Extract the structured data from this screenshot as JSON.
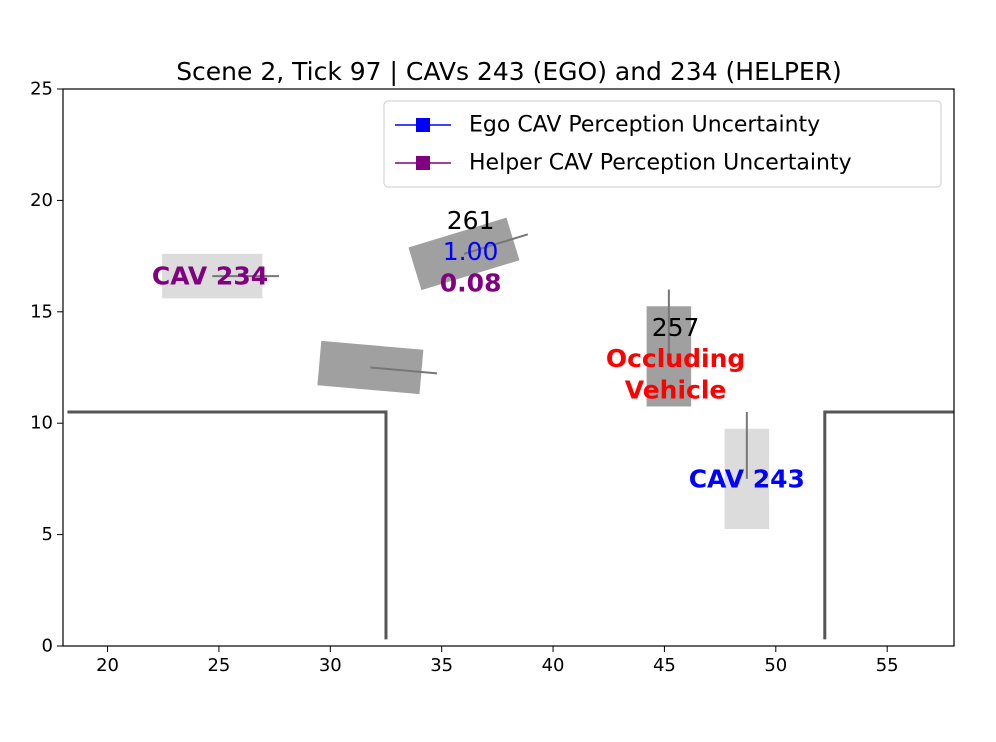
{
  "chart_data": {
    "type": "scatter",
    "title": "Scene 2, Tick 97 | CAVs 243 (EGO) and 234 (HELPER)",
    "xlabel": "",
    "ylabel": "",
    "xlim": [
      18,
      58
    ],
    "ylim": [
      0,
      25
    ],
    "x_ticks": [
      20,
      25,
      30,
      35,
      40,
      45,
      50,
      55
    ],
    "y_ticks": [
      0,
      5,
      10,
      15,
      20,
      25
    ],
    "grid": false,
    "legend": {
      "placement": "upper-right",
      "entries": [
        {
          "label": "Ego CAV Perception Uncertainty",
          "color": "#0000ff",
          "marker": "square"
        },
        {
          "label": "Helper CAV Perception Uncertainty",
          "color": "#800080",
          "marker": "square"
        }
      ]
    },
    "road_edges": [
      {
        "points": [
          [
            18.2,
            10.5
          ],
          [
            32.5,
            10.5
          ],
          [
            32.5,
            0.3
          ]
        ],
        "color": "#555555"
      },
      {
        "points": [
          [
            52.2,
            0.3
          ],
          [
            52.2,
            10.5
          ],
          [
            58,
            10.5
          ]
        ],
        "color": "#555555"
      }
    ],
    "vehicles": [
      {
        "id": "CAV 234",
        "role": "helper",
        "center": [
          24.7,
          16.6
        ],
        "length": 4.5,
        "width": 2.0,
        "heading_deg": 0,
        "fill": "#dcdcdc",
        "label": "CAV 234",
        "label_color": "#800080",
        "heading_line": true
      },
      {
        "id": "261",
        "role": "detected",
        "center": [
          36.0,
          17.6
        ],
        "length": 4.6,
        "width": 2.0,
        "heading_deg": 17,
        "fill": "#a0a0a0",
        "label": "261",
        "label_color": "#000000",
        "heading_line": true,
        "ego_uncertainty": "1.00",
        "helper_uncertainty": "0.08"
      },
      {
        "id": "unlabeled",
        "role": "detected",
        "center": [
          31.8,
          12.5
        ],
        "length": 4.6,
        "width": 2.0,
        "heading_deg": -5,
        "fill": "#a0a0a0",
        "label": "",
        "label_color": "#000000",
        "heading_line": true
      },
      {
        "id": "257",
        "role": "occluder",
        "center": [
          45.2,
          13.0
        ],
        "length": 4.5,
        "width": 2.0,
        "heading_deg": 90,
        "fill": "#a0a0a0",
        "label": "257",
        "label_color": "#000000",
        "heading_line": true,
        "note": "Occluding\nVehicle"
      },
      {
        "id": "CAV 243",
        "role": "ego",
        "center": [
          48.7,
          7.5
        ],
        "length": 4.5,
        "width": 2.0,
        "heading_deg": 90,
        "fill": "#dcdcdc",
        "label": "CAV 243",
        "label_color": "#0000ff",
        "heading_line": true
      }
    ],
    "annotations": [
      {
        "text": "CAV 234",
        "x": 24.6,
        "y": 16.6,
        "color": "#800080",
        "bold": true
      },
      {
        "text": "261",
        "x": 36.3,
        "y": 19.1,
        "color": "#000000",
        "bold": false
      },
      {
        "text": "1.00",
        "x": 36.3,
        "y": 17.7,
        "color": "#0000ff",
        "bold": false
      },
      {
        "text": "0.08",
        "x": 36.3,
        "y": 16.3,
        "color": "#800080",
        "bold": true
      },
      {
        "text": "257",
        "x": 45.5,
        "y": 14.3,
        "color": "#000000",
        "bold": false
      },
      {
        "text": "Occluding",
        "x": 45.5,
        "y": 12.9,
        "color": "#ff0000",
        "bold": true
      },
      {
        "text": "Vehicle",
        "x": 45.5,
        "y": 11.5,
        "color": "#ff0000",
        "bold": true
      },
      {
        "text": "CAV 243",
        "x": 48.7,
        "y": 7.5,
        "color": "#0000ff",
        "bold": true
      }
    ]
  }
}
